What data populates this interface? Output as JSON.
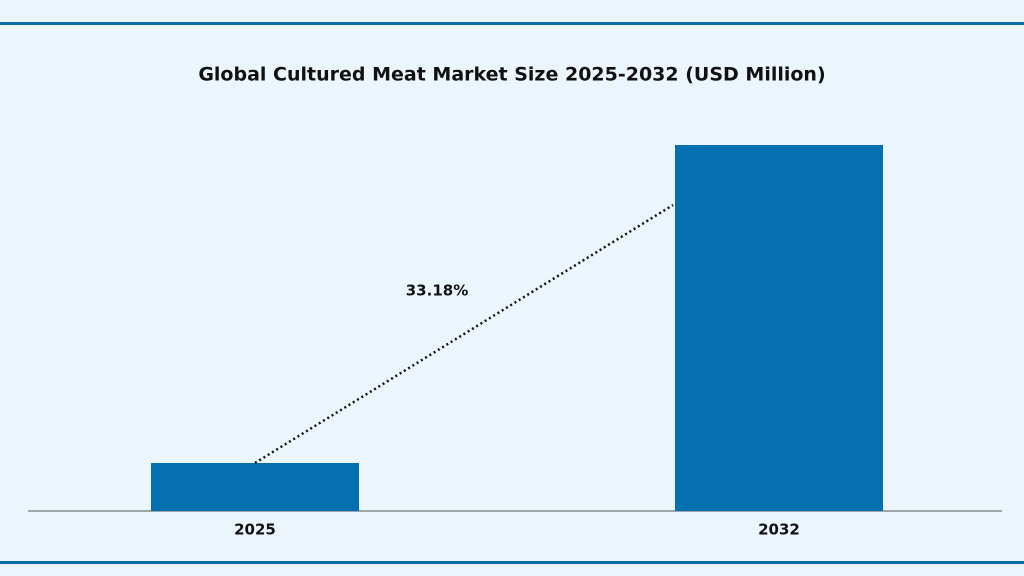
{
  "chart_data": {
    "type": "bar",
    "title": "Global Cultured Meat Market Size 2025-2032 (USD Million)",
    "categories": [
      "2025",
      "2032"
    ],
    "values": [
      48,
      366
    ],
    "color": "#0570b0",
    "ylim": [
      0,
      400
    ],
    "annotation": "33.18%"
  }
}
